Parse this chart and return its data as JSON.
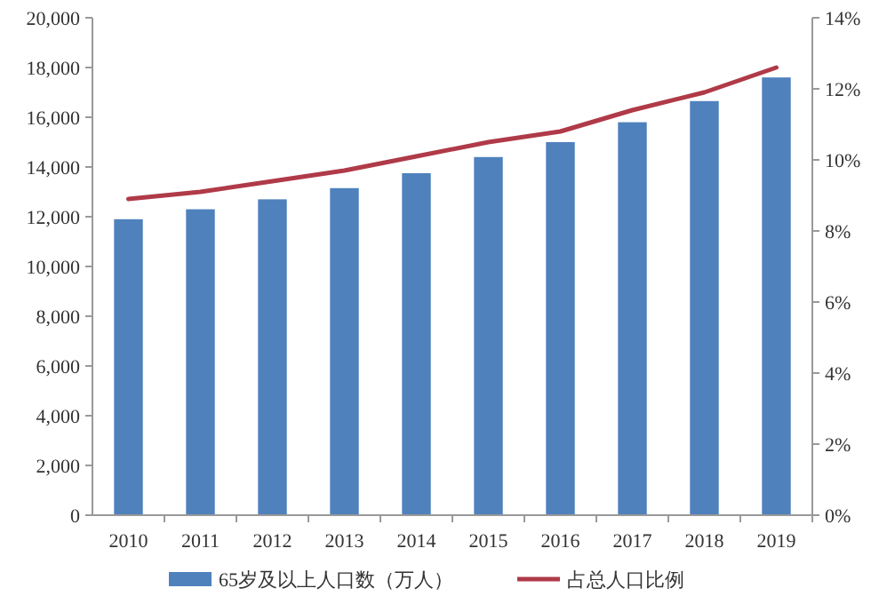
{
  "chart_data": {
    "type": "bar",
    "categories": [
      "2010",
      "2011",
      "2012",
      "2013",
      "2014",
      "2015",
      "2016",
      "2017",
      "2018",
      "2019"
    ],
    "series": [
      {
        "name": "65岁及以上人口数（万人）",
        "color": "#4f81bd",
        "values": [
          11900,
          12300,
          12700,
          13150,
          13750,
          14400,
          15000,
          15800,
          16650,
          17600
        ]
      },
      {
        "name": "占总人口比例",
        "type": "line",
        "axis": "y2",
        "color": "#b03a48",
        "values": [
          8.9,
          9.1,
          9.4,
          9.7,
          10.1,
          10.5,
          10.8,
          11.4,
          11.9,
          12.6
        ]
      }
    ],
    "ylim": [
      0,
      20000
    ],
    "yticks": [
      {
        "value": 0,
        "label": "0"
      },
      {
        "value": 2000,
        "label": "2,000"
      },
      {
        "value": 4000,
        "label": "4,000"
      },
      {
        "value": 6000,
        "label": "6,000"
      },
      {
        "value": 8000,
        "label": "8,000"
      },
      {
        "value": 10000,
        "label": "10,000"
      },
      {
        "value": 12000,
        "label": "12,000"
      },
      {
        "value": 14000,
        "label": "14,000"
      },
      {
        "value": 16000,
        "label": "16,000"
      },
      {
        "value": 18000,
        "label": "18,000"
      },
      {
        "value": 20000,
        "label": "20,000"
      }
    ],
    "y2lim": [
      0,
      14
    ],
    "y2ticks": [
      {
        "value": 0,
        "label": "0%"
      },
      {
        "value": 2,
        "label": "2%"
      },
      {
        "value": 4,
        "label": "4%"
      },
      {
        "value": 6,
        "label": "6%"
      },
      {
        "value": 8,
        "label": "8%"
      },
      {
        "value": 10,
        "label": "10%"
      },
      {
        "value": 12,
        "label": "12%"
      },
      {
        "value": 14,
        "label": "14%"
      }
    ],
    "legend": "bottom",
    "grid": false
  }
}
